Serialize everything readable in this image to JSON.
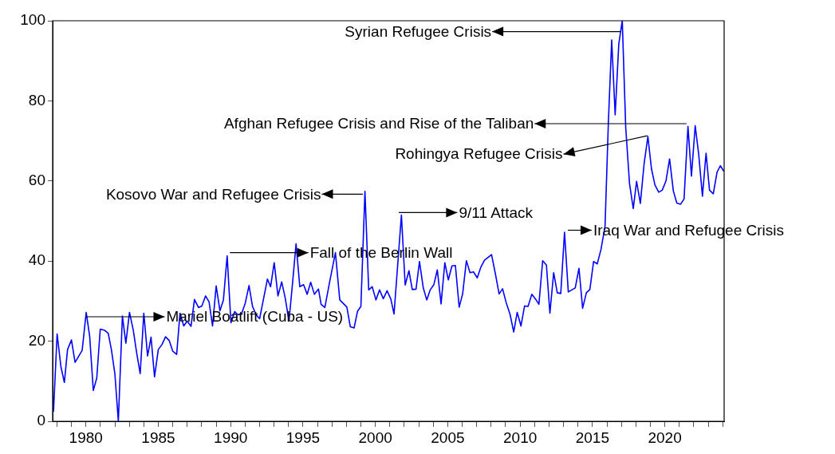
{
  "chart_data": {
    "type": "line",
    "color": "#0000ff",
    "marker": "none",
    "line_style": "solid",
    "grid": false,
    "legend": false,
    "xlim": [
      1977.7,
      2024.1
    ],
    "xticks": [
      {
        "value": 1978,
        "label": null
      },
      {
        "value": 1979,
        "label": null
      },
      1980,
      {
        "value": 1981,
        "label": null
      },
      {
        "value": 1982,
        "label": null
      },
      {
        "value": 1983,
        "label": null
      },
      {
        "value": 1984,
        "label": null
      },
      1985,
      {
        "value": 1986,
        "label": null
      },
      {
        "value": 1987,
        "label": null
      },
      {
        "value": 1988,
        "label": null
      },
      {
        "value": 1989,
        "label": null
      },
      1990,
      {
        "value": 1991,
        "label": null
      },
      {
        "value": 1992,
        "label": null
      },
      {
        "value": 1993,
        "label": null
      },
      {
        "value": 1994,
        "label": null
      },
      1995,
      {
        "value": 1996,
        "label": null
      },
      {
        "value": 1997,
        "label": null
      },
      {
        "value": 1998,
        "label": null
      },
      {
        "value": 1999,
        "label": null
      },
      2000,
      {
        "value": 2001,
        "label": null
      },
      {
        "value": 2002,
        "label": null
      },
      {
        "value": 2003,
        "label": null
      },
      {
        "value": 2004,
        "label": null
      },
      2005,
      {
        "value": 2006,
        "label": null
      },
      {
        "value": 2007,
        "label": null
      },
      {
        "value": 2008,
        "label": null
      },
      {
        "value": 2009,
        "label": null
      },
      2010,
      {
        "value": 2011,
        "label": null
      },
      {
        "value": 2012,
        "label": null
      },
      {
        "value": 2013,
        "label": null
      },
      {
        "value": 2014,
        "label": null
      },
      2015,
      {
        "value": 2016,
        "label": null
      },
      {
        "value": 2017,
        "label": null
      },
      {
        "value": 2018,
        "label": null
      },
      {
        "value": 2019,
        "label": null
      },
      2020,
      {
        "value": 2021,
        "label": null
      },
      {
        "value": 2022,
        "label": null
      },
      {
        "value": 2023,
        "label": null
      },
      {
        "value": 2024,
        "label": null
      }
    ],
    "ylim": [
      0,
      100
    ],
    "yticks": [
      0,
      20,
      40,
      60,
      80,
      100
    ],
    "x": [
      1977.76,
      1978.01,
      1978.27,
      1978.51,
      1978.73,
      1979.0,
      1979.25,
      1979.74,
      1980.02,
      1980.26,
      1980.51,
      1980.75,
      1980.99,
      1981.3,
      1981.54,
      1981.76,
      1982.0,
      1982.24,
      1982.52,
      1982.76,
      1983.01,
      1983.27,
      1983.51,
      1983.75,
      1984.0,
      1984.26,
      1984.5,
      1984.74,
      1985.0,
      1985.26,
      1985.5,
      1985.75,
      1986.0,
      1986.27,
      1986.5,
      1986.76,
      1987.0,
      1987.26,
      1987.5,
      1987.78,
      1988.01,
      1988.27,
      1988.51,
      1988.75,
      1989.0,
      1989.26,
      1989.5,
      1989.76,
      1990.02,
      1990.28,
      1990.51,
      1990.75,
      1991.01,
      1991.27,
      1991.51,
      1991.76,
      1992.0,
      1992.28,
      1992.54,
      1992.76,
      1993.01,
      1993.27,
      1993.53,
      1993.77,
      1994.03,
      1994.26,
      1994.52,
      1994.78,
      1995.04,
      1995.29,
      1995.53,
      1995.79,
      1996.07,
      1996.25,
      1996.51,
      1996.84,
      1997.24,
      1997.54,
      1998.03,
      1998.27,
      1998.53,
      1998.77,
      1999.0,
      1999.28,
      1999.54,
      1999.78,
      2000.04,
      2000.29,
      2000.55,
      2000.81,
      2001.07,
      2001.29,
      2001.8,
      2002.06,
      2002.32,
      2002.55,
      2002.81,
      2003.05,
      2003.31,
      2003.55,
      2003.79,
      2004.04,
      2004.28,
      2004.54,
      2004.8,
      2005.04,
      2005.29,
      2005.53,
      2005.79,
      2006.03,
      2006.29,
      2006.54,
      2006.78,
      2007.04,
      2007.28,
      2007.54,
      2008.03,
      2008.31,
      2008.55,
      2008.79,
      2009.04,
      2009.3,
      2009.56,
      2009.8,
      2010.06,
      2010.31,
      2010.55,
      2010.81,
      2011.07,
      2011.3,
      2011.56,
      2011.82,
      2012.06,
      2012.32,
      2012.57,
      2012.81,
      2013.07,
      2013.33,
      2013.57,
      2013.81,
      2014.07,
      2014.32,
      2014.58,
      2014.82,
      2015.08,
      2015.33,
      2015.59,
      2015.87,
      2016.1,
      2016.33,
      2016.57,
      2016.82,
      2017.06,
      2017.3,
      2017.56,
      2017.82,
      2018.05,
      2018.31,
      2018.57,
      2018.83,
      2019.08,
      2019.32,
      2019.58,
      2019.82,
      2020.08,
      2020.33,
      2020.59,
      2020.83,
      2021.09,
      2021.33,
      2021.6,
      2021.84,
      2022.1,
      2022.34,
      2022.6,
      2022.85,
      2023.09,
      2023.35,
      2023.61,
      2023.84,
      2024.08
    ],
    "values": [
      2.4,
      21.8,
      13.7,
      9.7,
      17.9,
      20.3,
      14.7,
      17.7,
      27.2,
      21.2,
      7.7,
      10.8,
      23.0,
      22.7,
      22.0,
      17.9,
      11.9,
      0,
      26.3,
      19.5,
      27.2,
      22.8,
      17.0,
      11.9,
      27.0,
      16.3,
      21.0,
      11.1,
      17.9,
      19.2,
      21.1,
      20.2,
      17.5,
      16.7,
      27.0,
      23.8,
      25.0,
      23.7,
      30.4,
      28.4,
      28.8,
      31.3,
      29.8,
      23.8,
      33.8,
      27.6,
      30.3,
      41.3,
      24.6,
      27.4,
      26.6,
      26.8,
      29.5,
      33.9,
      28.7,
      26.6,
      25.6,
      30.7,
      35.5,
      33.6,
      39.6,
      31.3,
      34.8,
      30.8,
      25.0,
      33.8,
      44.3,
      33.6,
      34.1,
      31.7,
      34.7,
      31.7,
      33.0,
      29.2,
      28.4,
      34.8,
      42.1,
      30.3,
      28.5,
      23.6,
      23.3,
      27.5,
      28.7,
      57.4,
      32.8,
      33.6,
      30.3,
      32.8,
      30.6,
      32.6,
      30.5,
      26.8,
      51.5,
      34.0,
      37.6,
      32.9,
      33.0,
      39.9,
      33.3,
      30.3,
      32.8,
      34.1,
      37.8,
      29.3,
      39.6,
      35.3,
      38.8,
      38.9,
      28.5,
      31.8,
      40.1,
      37.1,
      37.3,
      35.8,
      38.4,
      40.2,
      41.6,
      36.5,
      31.8,
      33.1,
      29.6,
      26.8,
      22.3,
      27.2,
      23.8,
      28.8,
      28.7,
      31.7,
      30.5,
      29.2,
      40.1,
      39.0,
      27.0,
      37.1,
      32.1,
      31.9,
      47.2,
      32.3,
      32.8,
      33.3,
      38.2,
      28.2,
      32.1,
      32.9,
      39.9,
      39.3,
      42.9,
      48.7,
      74.6,
      95.2,
      76.5,
      94.2,
      100,
      73.3,
      59.4,
      53.1,
      59.9,
      54.4,
      64.3,
      71.1,
      63.0,
      59.0,
      57.2,
      57.7,
      60.0,
      65.5,
      57.5,
      54.5,
      54.2,
      55.5,
      73.6,
      61.2,
      73.8,
      66.7,
      56.2,
      66.9,
      57.7,
      56.8,
      62.2,
      63.8,
      62.4
    ],
    "annotations": [
      {
        "text": "Mariel Boatlift (Cuba - US)",
        "x": 1980.0,
        "y": 26.1
      },
      {
        "text": "Fall of the Berlin Wall",
        "x": 1989.95,
        "y": 42.1
      },
      {
        "text": "Kosovo War and Refugee Crisis",
        "x": 1999.14,
        "y": 56.7
      },
      {
        "text": "9/11 Attack",
        "x": 2001.62,
        "y": 52.1
      },
      {
        "text": "Iraq War and Refugee Crisis",
        "x": 2013.3,
        "y": 47.7
      },
      {
        "text": "Syrian Refugee Crisis",
        "x": 2016.94,
        "y": 97.3
      },
      {
        "text": "Rohingya Refugee Crisis",
        "x": 2018.8,
        "y": 71.3
      },
      {
        "text": "Afghan Refugee Crisis and Rise of the Taliban",
        "x": 2021.5,
        "y": 74.3
      }
    ]
  }
}
